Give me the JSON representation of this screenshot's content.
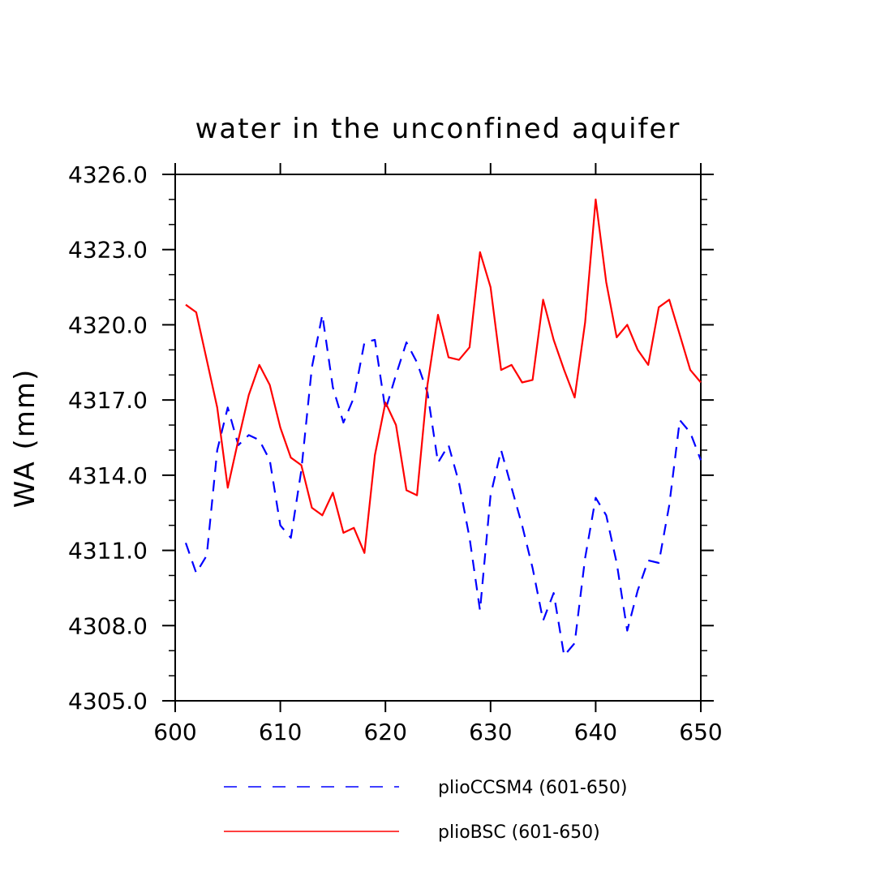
{
  "chart_data": {
    "type": "line",
    "title": "water in the unconfined aquifer",
    "xlabel": "",
    "ylabel": "WA  (mm)",
    "xlim": [
      600,
      650
    ],
    "ylim": [
      4305.0,
      4326.0
    ],
    "x_ticks": [
      "600",
      "610",
      "620",
      "630",
      "640",
      "650"
    ],
    "y_ticks": [
      "4305.0",
      "4308.0",
      "4311.0",
      "4314.0",
      "4317.0",
      "4320.0",
      "4323.0",
      "4326.0"
    ],
    "grid": false,
    "legend_position": "bottom",
    "x": [
      601,
      602,
      603,
      604,
      605,
      606,
      607,
      608,
      609,
      610,
      611,
      612,
      613,
      614,
      615,
      616,
      617,
      618,
      619,
      620,
      621,
      622,
      623,
      624,
      625,
      626,
      627,
      628,
      629,
      630,
      631,
      632,
      633,
      634,
      635,
      636,
      637,
      638,
      639,
      640,
      641,
      642,
      643,
      644,
      645,
      646,
      647,
      648,
      649,
      650
    ],
    "series": [
      {
        "name": "plioCCSM4 (601-650)",
        "color": "#0000ff",
        "style": "dashed",
        "values": [
          4311.3,
          4310.1,
          4310.8,
          4315.0,
          4316.7,
          4315.2,
          4315.6,
          4315.4,
          4314.6,
          4312.0,
          4311.5,
          4314.2,
          4318.3,
          4320.4,
          4317.5,
          4316.1,
          4317.1,
          4319.3,
          4319.4,
          4316.6,
          4318.0,
          4319.3,
          4318.5,
          4317.3,
          4314.5,
          4315.2,
          4313.7,
          4311.5,
          4308.6,
          4313.2,
          4315.0,
          4313.5,
          4312.0,
          4310.3,
          4308.2,
          4309.3,
          4306.8,
          4307.3,
          4310.7,
          4313.1,
          4312.4,
          4310.5,
          4307.8,
          4309.4,
          4310.6,
          4310.5,
          4312.8,
          4316.2,
          4315.7,
          4314.6
        ]
      },
      {
        "name": "plioBSC (601-650)",
        "color": "#ff0000",
        "style": "solid",
        "values": [
          4320.8,
          4320.5,
          4318.6,
          4316.7,
          4313.5,
          4315.4,
          4317.2,
          4318.4,
          4317.6,
          4315.9,
          4314.7,
          4314.4,
          4312.7,
          4312.4,
          4313.3,
          4311.7,
          4311.9,
          4310.9,
          4314.8,
          4316.9,
          4316.0,
          4313.4,
          4313.2,
          4317.6,
          4320.4,
          4318.7,
          4318.6,
          4319.1,
          4322.9,
          4321.5,
          4318.2,
          4318.4,
          4317.7,
          4317.8,
          4321.0,
          4319.4,
          4318.2,
          4317.1,
          4320.1,
          4325.0,
          4321.7,
          4319.5,
          4320.0,
          4319.0,
          4318.4,
          4320.7,
          4321.0,
          4319.6,
          4318.2,
          4317.7
        ]
      }
    ]
  }
}
